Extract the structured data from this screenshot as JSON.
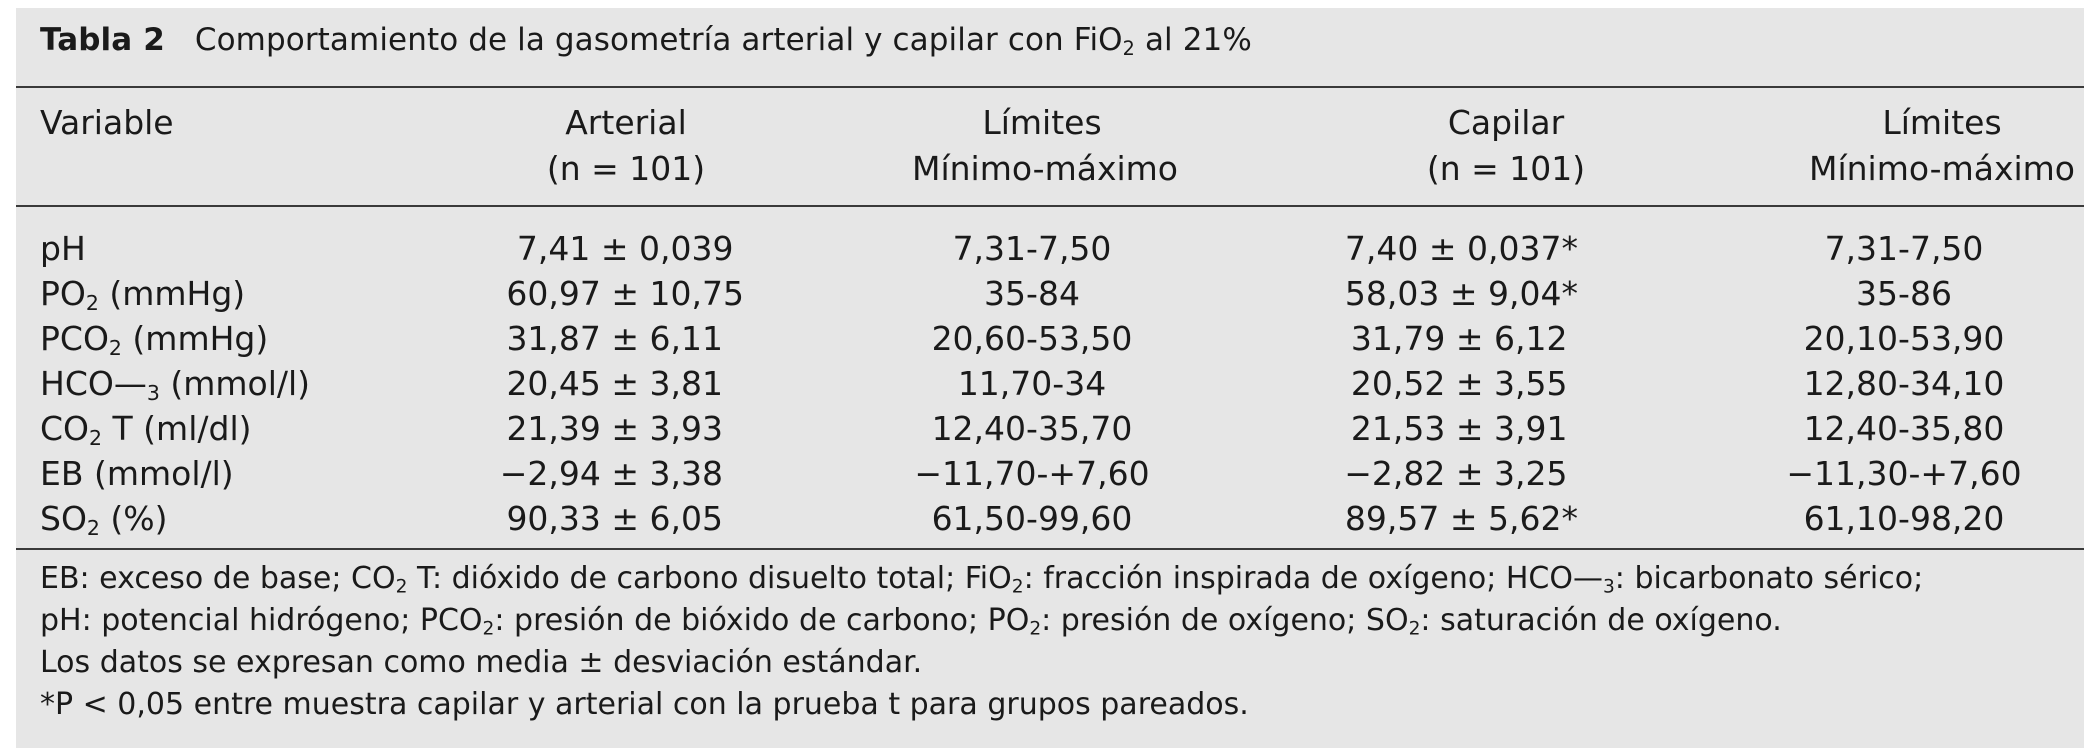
{
  "table": {
    "caption_label": "Tabla 2",
    "caption_text": "Comportamiento de la gasometría arterial y capilar con FiO<sub>2</sub> al 21%",
    "headers": [
      {
        "line1": "Variable",
        "line2": ""
      },
      {
        "line1": "Arterial",
        "line2": "(n = 101)"
      },
      {
        "line1": "Límites",
        "line2": "Mínimo-máximo"
      },
      {
        "line1": "Capilar",
        "line2": "(n = 101)"
      },
      {
        "line1": "Límites",
        "line2": "Mínimo-máximo"
      }
    ],
    "rows": [
      [
        "pH",
        "7,41 ± 0,039&nbsp;",
        "7,31-7,50",
        "7,40 ± 0,037*",
        "7,31-7,50"
      ],
      [
        "PO<sub>2</sub> (mmHg)",
        "60,97 ± 10,75",
        "35-84",
        "58,03 ± 9,04*",
        "35-86"
      ],
      [
        "PCO<sub>2</sub> (mmHg)",
        "31,87 ± 6,11&nbsp;&nbsp;",
        "20,60-53,50",
        "31,79 ± 6,12&nbsp;",
        "20,10-53,90"
      ],
      [
        "HCO—<sub>3</sub> (mmol/l)",
        "20,45 ± 3,81&nbsp;&nbsp;",
        "11,70-34",
        "20,52 ± 3,55&nbsp;",
        "12,80-34,10"
      ],
      [
        "CO<sub>2</sub> T (ml/dl)",
        "21,39 ± 3,93&nbsp;&nbsp;",
        "12,40-35,70",
        "21,53 ± 3,91&nbsp;",
        "12,40-35,80"
      ],
      [
        "EB (mmol/l)",
        "−2,94 ± 3,38&nbsp;&nbsp;",
        "−11,70-+7,60",
        "−2,82 ± 3,25&nbsp;",
        "−11,30-+7,60"
      ],
      [
        "SO<sub>2</sub> (%)",
        "90,33 ± 6,05&nbsp;&nbsp;",
        "61,50-99,60",
        "89,57 ± 5,62*",
        "61,10-98,20"
      ]
    ],
    "notes": [
      "EB: exceso de base; CO<sub>2</sub> T: dióxido de carbono disuelto total; FiO<sub>2</sub>: fracción inspirada de oxígeno; HCO—<sub>3</sub>: bicarbonato sérico;",
      "pH: potencial hidrógeno; PCO<sub>2</sub>: presión de bióxido de carbono; PO<sub>2</sub>: presión de oxígeno; SO<sub>2</sub>: saturación de oxígeno.",
      "Los datos se expresan como media ± desviación estándar.",
      "*P &lt; 0,05 entre muestra capilar y arterial con la prueba t para grupos pareados."
    ]
  }
}
